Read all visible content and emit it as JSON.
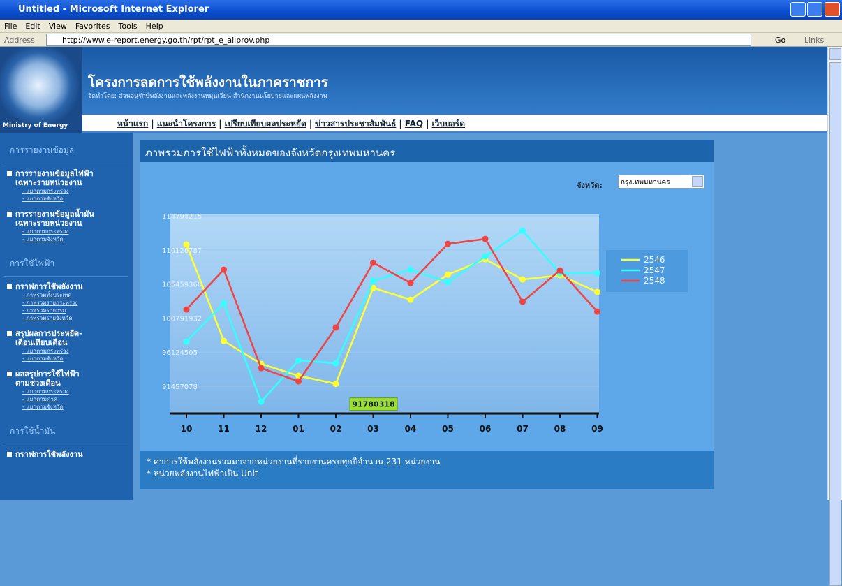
{
  "window": {
    "title": "Untitled - Microsoft Internet Explorer"
  },
  "menu": [
    "File",
    "Edit",
    "View",
    "Favorites",
    "Tools",
    "Help"
  ],
  "address": {
    "label": "Address",
    "url": "http://www.e-report.energy.go.th/rpt/rpt_e_allprov.php",
    "go": "Go",
    "links": "Links"
  },
  "header": {
    "logo_text": "Ministry of Energy",
    "title": "โครงการลดการใช้พลังงานในภาคราชการ",
    "subtitle": "จัดทำโดย: ส่วนอนุรักษ์พลังงานและพลังงานหมุนเวียน สำนักงานนโยบายและแผนพลังงาน"
  },
  "nav": {
    "separator": "|",
    "items": [
      "หน้าแรก",
      "แนะนำโครงการ",
      "เปรียบเทียบผลประหยัด",
      "ข่าวสารประชาสัมพันธ์",
      "FAQ",
      "เว็บบอร์ด"
    ]
  },
  "sidebar": [
    {
      "heading": "การรายงานข้อมูล",
      "items": [
        {
          "lines": [
            "การรายงานข้อมูลไฟฟ้า",
            "เฉพาะรายหน่วยงาน"
          ],
          "links": [
            "- แยกตามกระทรวง",
            "- แยกตามจังหวัด"
          ]
        },
        {
          "lines": [
            "การรายงานข้อมูลน้ำมัน",
            "เฉพาะรายหน่วยงาน"
          ],
          "links": [
            "- แยกตามกระทรวง",
            "- แยกตามจังหวัด"
          ]
        }
      ]
    },
    {
      "heading": "การใช้ไฟฟ้า",
      "items": [
        {
          "lines": [
            "กราฟการใช้พลังงาน"
          ],
          "links": [
            "- ภาพรวมทั้งประเทศ",
            "- ภาพรวมรายกระทรวง",
            "- ภาพรวมรายกรม",
            "- ภาพรวมรายจังหวัด"
          ]
        },
        {
          "lines": [
            "สรุปผลการประหยัด-",
            "เดือนเทียบเดือน"
          ],
          "links": [
            "- แยกตามกระทรวง",
            "- แยกตามจังหวัด"
          ]
        },
        {
          "lines": [
            "ผลสรุปการใช้ไฟฟ้า",
            "ตามช่วงเดือน"
          ],
          "links": [
            "- แยกตามกระทรวง",
            "- แยกตามภาค",
            "- แยกตามจังหวัด"
          ]
        }
      ]
    },
    {
      "heading": "การใช้น้ำมัน",
      "items": [
        {
          "lines": [
            "กราฟการใช้พลังงาน"
          ],
          "links": []
        }
      ]
    }
  ],
  "panel": {
    "title": "ภาพรวมการใช้ไฟฟ้าทั้งหมดของจังหวัดกรุงเทพมหานคร",
    "province_label": "จังหวัด:",
    "province": "กรุงเทพมหานคร"
  },
  "chart_data": {
    "type": "line",
    "categories": [
      "10",
      "11",
      "12",
      "01",
      "02",
      "03",
      "04",
      "05",
      "06",
      "07",
      "08",
      "09"
    ],
    "series": [
      {
        "name": "2546",
        "color": "#ffff33",
        "values": [
          110860000,
          97670000,
          94520000,
          92890000,
          91780318,
          104930000,
          103310000,
          106750000,
          108850000,
          106080000,
          106660000,
          104360000
        ]
      },
      {
        "name": "2547",
        "color": "#33ffff",
        "values": [
          97570000,
          102830000,
          89350000,
          94990000,
          94610000,
          105890000,
          107420000,
          105700000,
          109240000,
          112770000,
          106940000,
          106940000
        ]
      },
      {
        "name": "2548",
        "color": "#ee4444",
        "values": [
          101970000,
          107420000,
          93940000,
          92130000,
          99490000,
          108380000,
          105600000,
          110960000,
          111630000,
          103020000,
          107320000,
          101680000
        ]
      }
    ],
    "ylim": [
      87728000,
      114986000
    ],
    "yticks": [
      91457078,
      96124505,
      100791932,
      105459360,
      110126787,
      114794215
    ],
    "grid": true,
    "legend": "right"
  },
  "notes": [
    "* ค่าการใช้พลังงานรวมมาจากหน่วยงานที่รายงานครบทุกปีจำนวน 231 หน่วยงาน",
    "* หน่วยพลังงานไฟฟ้าเป็น Unit"
  ]
}
